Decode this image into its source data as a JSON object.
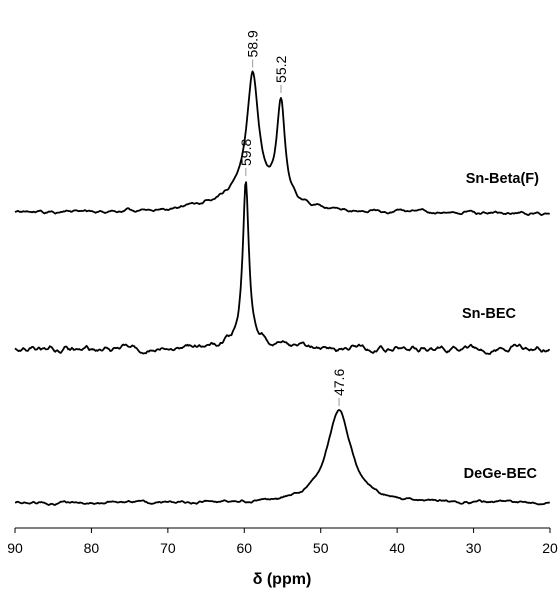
{
  "chart_data": {
    "type": "line",
    "title": "",
    "xlabel": "δ (ppm)",
    "ylabel": "",
    "xlim": [
      90,
      20
    ],
    "x_reversed": true,
    "x_ticks": [
      "90",
      "80",
      "70",
      "60",
      "50",
      "40",
      "30",
      "20"
    ],
    "y_axis_shown": false,
    "grid": false,
    "series": [
      {
        "name": "Sn-Beta(F)",
        "baseline": 0,
        "peaks": [
          {
            "center": 58.9,
            "label": "58.9",
            "height": 117,
            "width": 0.9
          },
          {
            "center": 55.2,
            "label": "55.2",
            "height": 98,
            "width": 0.65
          }
        ],
        "broad": [
          {
            "center": 59.5,
            "height": 22,
            "width": 4.5
          }
        ]
      },
      {
        "name": "Sn-BEC",
        "baseline": 0,
        "peaks": [
          {
            "center": 59.8,
            "label": "59.8",
            "height": 155,
            "width": 0.45
          }
        ],
        "broad": [
          {
            "center": 59.8,
            "height": 14,
            "width": 2.2
          }
        ]
      },
      {
        "name": "DeGe-BEC",
        "baseline": 0,
        "peaks": [
          {
            "center": 47.6,
            "label": "47.6",
            "height": 93,
            "width": 1.9
          }
        ],
        "broad": []
      }
    ]
  }
}
